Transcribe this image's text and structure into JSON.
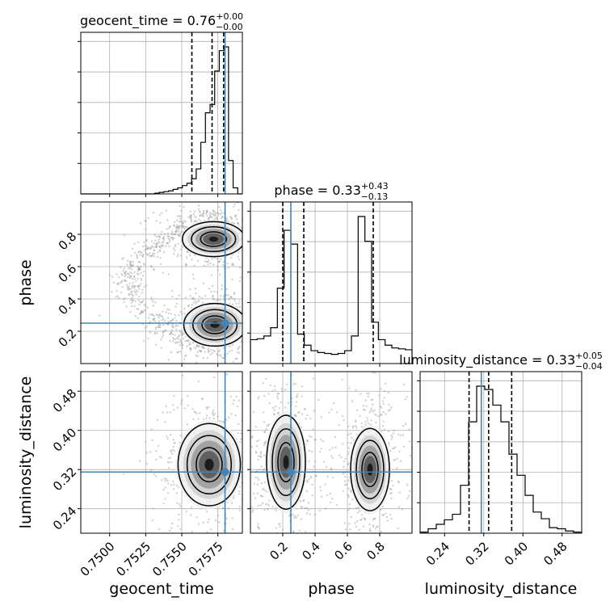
{
  "chart_data": {
    "type": "corner",
    "parameters": [
      "geocent_time",
      "phase",
      "luminosity_distance"
    ],
    "truths": {
      "geocent_time": 0.758,
      "phase": 0.25,
      "luminosity_distance": 0.315
    },
    "ranges": {
      "geocent_time": [
        0.748,
        0.7592
      ],
      "phase": [
        0.0,
        1.0
      ],
      "luminosity_distance": [
        0.19,
        0.52
      ]
    },
    "titles": [
      {
        "param": "geocent_time",
        "prefix": "geocent_time = ",
        "value": "0.76",
        "plus": "+0.00",
        "minus": "−0.00"
      },
      {
        "param": "phase",
        "prefix": "phase = ",
        "value": "0.33",
        "plus": "+0.43",
        "minus": "−0.13"
      },
      {
        "param": "luminosity_distance",
        "prefix": "luminosity_distance = ",
        "value": "0.33",
        "plus": "+0.05",
        "minus": "−0.04"
      }
    ],
    "xlabels": [
      "geocent_time",
      "phase",
      "luminosity_distance"
    ],
    "ylabels": [
      "",
      "phase",
      "luminosity_distance"
    ],
    "ticks": {
      "geocent_time": {
        "values": [
          0.75,
          0.7525,
          0.755,
          0.7575
        ],
        "labels": [
          "0.7500",
          "0.7525",
          "0.7550",
          "0.7575"
        ]
      },
      "phase": {
        "values": [
          0.2,
          0.4,
          0.6,
          0.8
        ],
        "labels": [
          "0.2",
          "0.4",
          "0.6",
          "0.8"
        ]
      },
      "luminosity_distance": {
        "values": [
          0.24,
          0.32,
          0.4,
          0.48
        ],
        "labels": [
          "0.24",
          "0.32",
          "0.40",
          "0.48"
        ]
      }
    },
    "histograms": {
      "geocent_time": {
        "range": [
          0.748,
          0.7592
        ],
        "counts": [
          0,
          0,
          0,
          0,
          0,
          0,
          0,
          0,
          0,
          0,
          0,
          0,
          0,
          0,
          0,
          0,
          1,
          2,
          3,
          4,
          6,
          8,
          11,
          14,
          20,
          33,
          68,
          107,
          118,
          162,
          189,
          194,
          44,
          8,
          0
        ],
        "quantiles": [
          0.7557,
          0.7571,
          0.7579
        ]
      },
      "phase": {
        "range": [
          0.0,
          1.0
        ],
        "counts": [
          26,
          27,
          30,
          39,
          82,
          145,
          130,
          32,
          20,
          14,
          12,
          11,
          10,
          11,
          14,
          30,
          160,
          133,
          45,
          26,
          20,
          17,
          16,
          15
        ],
        "quantiles": [
          0.2,
          0.33,
          0.76
        ]
      },
      "luminosity_distance": {
        "range": [
          0.19,
          0.52
        ],
        "counts": [
          1,
          4,
          8,
          12,
          17,
          43,
          100,
          132,
          129,
          115,
          100,
          71,
          52,
          34,
          19,
          13,
          5,
          4,
          2,
          1
        ],
        "quantiles": [
          0.29,
          0.33,
          0.377
        ]
      }
    },
    "density_modes": [
      {
        "pair": [
          "geocent_time",
          "phase"
        ],
        "center": [
          0.7573,
          0.24
        ],
        "spread": [
          0.0009,
          0.055
        ]
      },
      {
        "pair": [
          "geocent_time",
          "phase"
        ],
        "center": [
          0.7572,
          0.77
        ],
        "spread": [
          0.0009,
          0.045
        ]
      },
      {
        "pair": [
          "geocent_time",
          "luminosity_distance"
        ],
        "center": [
          0.7569,
          0.33
        ],
        "spread": [
          0.0009,
          0.035
        ]
      },
      {
        "pair": [
          "phase",
          "luminosity_distance"
        ],
        "center": [
          0.22,
          0.335
        ],
        "spread": [
          0.05,
          0.04
        ]
      },
      {
        "pair": [
          "phase",
          "luminosity_distance"
        ],
        "center": [
          0.74,
          0.32
        ],
        "spread": [
          0.05,
          0.035
        ]
      }
    ]
  }
}
